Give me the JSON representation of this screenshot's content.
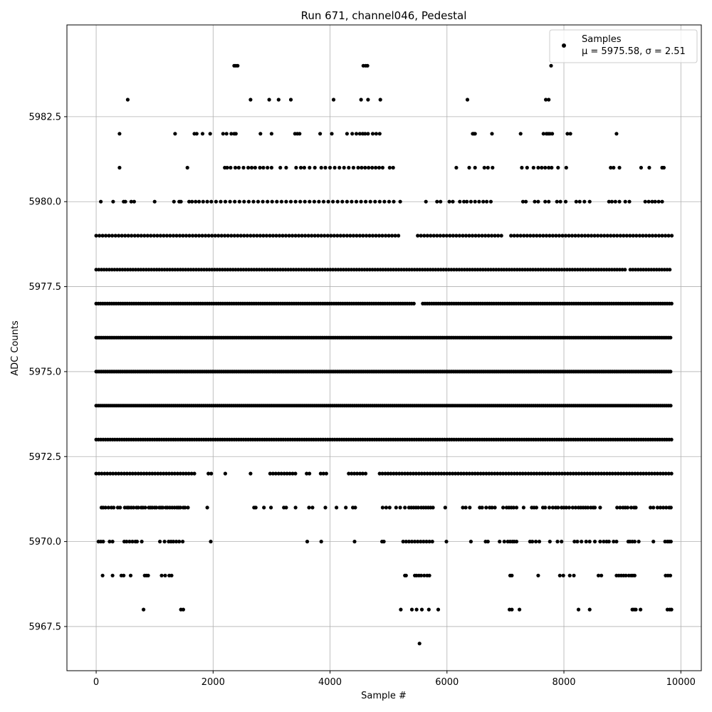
{
  "chart_data": {
    "type": "scatter",
    "title": "Run 671, channel046, Pedestal",
    "xlabel": "Sample #",
    "ylabel": "ADC Counts",
    "xlim": [
      -500,
      10350
    ],
    "ylim": [
      5966.2,
      5985.2
    ],
    "xticks": [
      0,
      2000,
      4000,
      6000,
      8000,
      10000
    ],
    "yticks": [
      5967.5,
      5970.0,
      5972.5,
      5975.0,
      5977.5,
      5980.0,
      5982.5
    ],
    "xtick_labels": [
      "0",
      "2000",
      "4000",
      "6000",
      "8000",
      "10000"
    ],
    "ytick_labels": [
      "5967.5",
      "5970.0",
      "5972.5",
      "5975.0",
      "5977.5",
      "5980.0",
      "5982.5"
    ],
    "grid": true,
    "legend": {
      "placement": "top-right",
      "entry_label": "Samples",
      "stats_text": "μ = 5975.58, σ = 2.51"
    },
    "marker_color": "#000000",
    "series": [
      {
        "name": "Samples",
        "levels": [
          {
            "y": 5984,
            "x": [
              2360,
              2390,
              2420,
              4570,
              4610,
              4640,
              7780
            ]
          },
          {
            "y": 5983,
            "x": [
              540,
              2640,
              2960,
              3120,
              3330,
              4060,
              4530,
              4650,
              4860,
              6350,
              7690,
              7740
            ]
          },
          {
            "y": 5982,
            "x": [
              400,
              1350,
              1680,
              1720,
              1820,
              1950,
              2170,
              2230,
              2310,
              2360,
              2390,
              2810,
              3000,
              3400,
              3440,
              3480,
              3830,
              4030,
              4290,
              4380,
              4450,
              4510,
              4560,
              4600,
              4650,
              4730,
              4790,
              4850,
              6440,
              6460,
              6480,
              6770,
              7260,
              7650,
              7700,
              7730,
              7760,
              7800,
              8060,
              8110,
              8900
            ]
          },
          {
            "y": 5981,
            "x": [
              400,
              1560,
              2200,
              2240,
              2300,
              2380,
              2440,
              2520,
              2600,
              2660,
              2720,
              2800,
              2860,
              2930,
              3000,
              3150,
              3250,
              3420,
              3500,
              3560,
              3650,
              3740,
              3850,
              3920,
              4000,
              4080,
              4160,
              4240,
              4320,
              4400,
              4480,
              4540,
              4600,
              4660,
              4720,
              4780,
              4840,
              4900,
              5020,
              5080,
              6160,
              6380,
              6480,
              6640,
              6700,
              6780,
              7280,
              7370,
              7480,
              7560,
              7620,
              7680,
              7740,
              7790,
              7900,
              8040,
              8800,
              8850,
              8950,
              9320,
              9460,
              9680,
              9710
            ]
          },
          {
            "y": 5980,
            "x": [
              80,
              290,
              470,
              500,
              600,
              650,
              1000,
              1330,
              1420,
              1450,
              1590,
              1640,
              1700,
              1760,
              1830,
              1900,
              1970,
              2050,
              2130,
              2210,
              2290,
              2370,
              2450,
              2530,
              2610,
              2690,
              2770,
              2850,
              2930,
              3010,
              3090,
              3170,
              3250,
              3330,
              3410,
              3490,
              3570,
              3650,
              3730,
              3810,
              3890,
              3970,
              4050,
              4130,
              4210,
              4290,
              4370,
              4450,
              4530,
              4610,
              4690,
              4770,
              4850,
              4930,
              5010,
              5090,
              5200,
              5640,
              5830,
              5890,
              6040,
              6100,
              6220,
              6290,
              6340,
              6410,
              6480,
              6550,
              6620,
              6680,
              6750,
              7300,
              7350,
              7500,
              7560,
              7680,
              7740,
              7880,
              7940,
              8030,
              8210,
              8270,
              8350,
              8440,
              8770,
              8820,
              8880,
              8950,
              9050,
              9120,
              9390,
              9450,
              9510,
              9560,
              9620,
              9680
            ]
          }
        ],
        "bands": [
          {
            "y": 5979,
            "x_start": 0,
            "x_end": 9850,
            "step": 55,
            "gaps": [
              [
                5200,
                5480
              ],
              [
                6980,
                7060
              ]
            ]
          },
          {
            "y": 5978,
            "x_start": 0,
            "x_end": 9850,
            "step": 45,
            "gaps": [
              [
                9060,
                9100
              ]
            ]
          },
          {
            "y": 5977,
            "x_start": 0,
            "x_end": 9850,
            "step": 38,
            "gaps": [
              [
                5460,
                5560
              ]
            ]
          },
          {
            "y": 5976,
            "x_start": 0,
            "x_end": 9850,
            "step": 32,
            "gaps": []
          },
          {
            "y": 5975,
            "x_start": 0,
            "x_end": 9850,
            "step": 32,
            "gaps": []
          },
          {
            "y": 5974,
            "x_start": 0,
            "x_end": 9850,
            "step": 34,
            "gaps": []
          },
          {
            "y": 5973,
            "x_start": 0,
            "x_end": 9850,
            "step": 40,
            "gaps": []
          },
          {
            "y": 5972,
            "x_start": 0,
            "x_end": 9850,
            "step": 48,
            "gaps": [
              [
                1700,
                1880
              ],
              [
                2000,
                2200
              ],
              [
                2250,
                2620
              ],
              [
                2680,
                2950
              ],
              [
                3420,
                3560
              ],
              [
                3660,
                3820
              ],
              [
                3980,
                4280
              ],
              [
                4620,
                4840
              ]
            ]
          }
        ],
        "sparse_levels": [
          {
            "y": 5971,
            "x": [
              90,
              120,
              160,
              210,
              260,
              300,
              370,
              410,
              490,
              530,
              560,
              600,
              640,
              690,
              720,
              770,
              800,
              840,
              900,
              930,
              960,
              1000,
              1030,
              1080,
              1110,
              1140,
              1190,
              1220,
              1260,
              1300,
              1340,
              1380,
              1410,
              1440,
              1490,
              1520,
              1570,
              1900,
              2700,
              2730,
              2870,
              2990,
              3210,
              3250,
              3410,
              3640,
              3700,
              3920,
              4110,
              4270,
              4390,
              4430,
              4900,
              4960,
              5020,
              5130,
              5200,
              5280,
              5350,
              5390,
              5430,
              5470,
              5510,
              5560,
              5600,
              5640,
              5680,
              5720,
              5760,
              5970,
              6270,
              6320,
              6390,
              6560,
              6600,
              6670,
              6730,
              6770,
              6820,
              6960,
              7020,
              7060,
              7100,
              7140,
              7190,
              7310,
              7450,
              7490,
              7530,
              7640,
              7680,
              7750,
              7810,
              7860,
              7900,
              7960,
              8000,
              8040,
              8090,
              8150,
              8200,
              8250,
              8290,
              8330,
              8370,
              8410,
              8460,
              8500,
              8530,
              8620,
              8910,
              8960,
              9010,
              9050,
              9090,
              9150,
              9200,
              9230,
              9480,
              9530,
              9600,
              9650,
              9700,
              9750,
              9800,
              9830
            ]
          },
          {
            "y": 5970,
            "x": [
              40,
              80,
              120,
              230,
              280,
              480,
              520,
              570,
              620,
              670,
              700,
              780,
              1090,
              1170,
              1240,
              1280,
              1320,
              1370,
              1420,
              1480,
              1960,
              3610,
              3850,
              4420,
              4890,
              4920,
              5250,
              5300,
              5350,
              5400,
              5450,
              5500,
              5550,
              5600,
              5650,
              5700,
              5750,
              5990,
              6410,
              6660,
              6700,
              6900,
              6980,
              7040,
              7080,
              7120,
              7150,
              7190,
              7420,
              7460,
              7520,
              7580,
              7760,
              7890,
              7960,
              8180,
              8230,
              8300,
              8380,
              8440,
              8530,
              8620,
              8680,
              8730,
              8770,
              8850,
              8900,
              9100,
              9130,
              9170,
              9210,
              9280,
              9530,
              9730,
              9770,
              9800,
              9830
            ]
          },
          {
            "y": 5969,
            "x": [
              110,
              280,
              430,
              470,
              590,
              830,
              860,
              890,
              1120,
              1180,
              1250,
              1290,
              5280,
              5300,
              5450,
              5480,
              5520,
              5560,
              5610,
              5660,
              5700,
              7080,
              7110,
              7560,
              7930,
              7990,
              8100,
              8170,
              8590,
              8640,
              8900,
              8940,
              8980,
              9020,
              9060,
              9110,
              9150,
              9180,
              9210,
              9740,
              9780,
              9820
            ]
          },
          {
            "y": 5968,
            "x": [
              810,
              1450,
              1490,
              5210,
              5400,
              5480,
              5570,
              5690,
              5850,
              7070,
              7110,
              7240,
              8250,
              8440,
              9170,
              9200,
              9230,
              9310,
              9770,
              9810,
              9840
            ]
          },
          {
            "y": 5967,
            "x": [
              5530
            ]
          }
        ]
      }
    ]
  }
}
